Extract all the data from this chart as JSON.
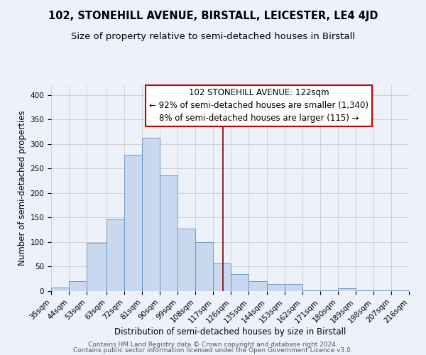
{
  "title": "102, STONEHILL AVENUE, BIRSTALL, LEICESTER, LE4 4JD",
  "subtitle": "Size of property relative to semi-detached houses in Birstall",
  "xlabel": "Distribution of semi-detached houses by size in Birstall",
  "ylabel": "Number of semi-detached properties",
  "bin_labels": [
    "35sqm",
    "44sqm",
    "53sqm",
    "63sqm",
    "72sqm",
    "81sqm",
    "90sqm",
    "99sqm",
    "108sqm",
    "117sqm",
    "126sqm",
    "135sqm",
    "144sqm",
    "153sqm",
    "162sqm",
    "171sqm",
    "180sqm",
    "189sqm",
    "198sqm",
    "207sqm",
    "216sqm"
  ],
  "bin_edges": [
    35,
    44,
    53,
    63,
    72,
    81,
    90,
    99,
    108,
    117,
    126,
    135,
    144,
    153,
    162,
    171,
    180,
    189,
    198,
    207,
    216
  ],
  "bar_heights": [
    7,
    20,
    98,
    147,
    278,
    313,
    236,
    128,
    100,
    57,
    35,
    20,
    15,
    14,
    2,
    1,
    6,
    1,
    2,
    1
  ],
  "bar_color": "#c8d8ee",
  "bar_edge_color": "#6090c0",
  "property_value": 122,
  "property_label": "102 STONEHILL AVENUE: 122sqm",
  "pct_smaller": 92,
  "count_smaller": 1340,
  "pct_larger": 8,
  "count_larger": 115,
  "vline_color": "#800000",
  "annotation_box_edge": "#cc0000",
  "ylim": [
    0,
    420
  ],
  "yticks": [
    0,
    50,
    100,
    150,
    200,
    250,
    300,
    350,
    400
  ],
  "footer1": "Contains HM Land Registry data © Crown copyright and database right 2024.",
  "footer2": "Contains public sector information licensed under the Open Government Licence v3.0.",
  "bg_color": "#edf2fa",
  "grid_color": "#cccccc",
  "title_fontsize": 10.5,
  "subtitle_fontsize": 9.5,
  "axis_label_fontsize": 8.5,
  "tick_fontsize": 7.5,
  "annotation_fontsize": 8.5,
  "footer_fontsize": 6.5
}
